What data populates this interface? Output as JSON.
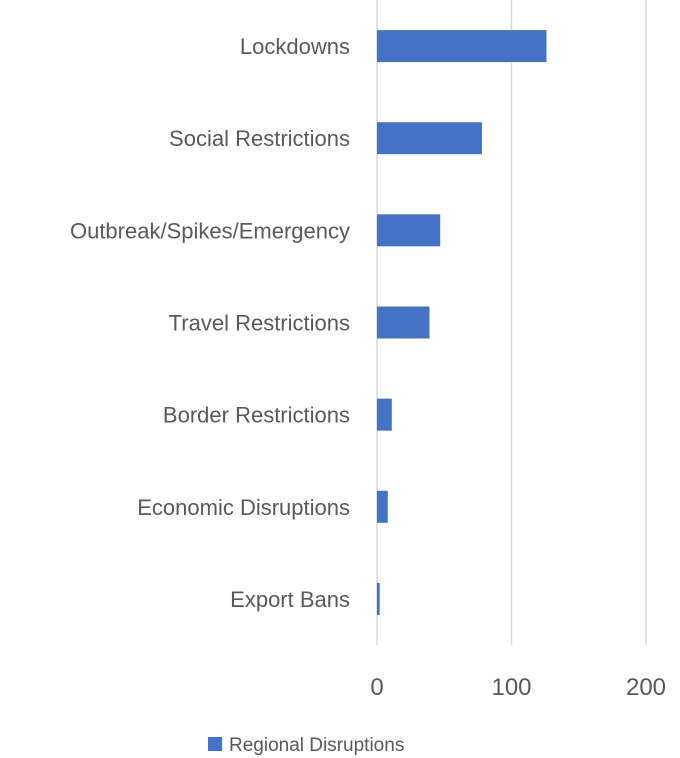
{
  "chart_data": {
    "type": "bar",
    "orientation": "horizontal",
    "categories": [
      "Lockdowns",
      "Social Restrictions",
      "Outbreak/Spikes/Emergency",
      "Travel Restrictions",
      "Border Restrictions",
      "Economic Disruptions",
      "Export Bans"
    ],
    "series": [
      {
        "name": "Regional Disruptions",
        "values": [
          126,
          78,
          47,
          39,
          11,
          8,
          2
        ]
      }
    ],
    "x_ticks": [
      "0",
      "100",
      "200"
    ],
    "xlim": [
      0,
      200
    ],
    "grid": true,
    "legend_position": "bottom",
    "colors": {
      "bar": "#4472C4",
      "grid": "#D9D9D9",
      "text": "#595959"
    }
  }
}
